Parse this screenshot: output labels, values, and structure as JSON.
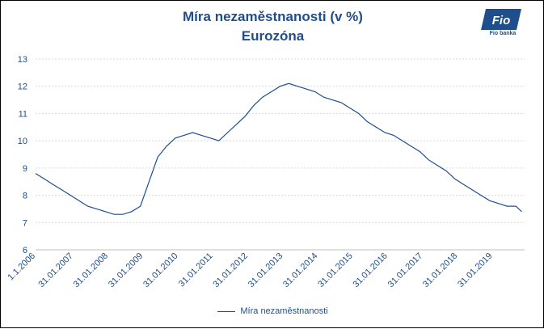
{
  "brand": {
    "logo_text": "Fio banka",
    "logo_glyph": "Fio",
    "color": "#1f4e8c"
  },
  "chart_data": {
    "type": "line",
    "title": "Míra nezaměstnanosti (v %)",
    "subtitle": "Eurozóna",
    "xlabel": "",
    "ylabel": "",
    "ylim": [
      6,
      13
    ],
    "yticks": [
      6,
      7,
      8,
      9,
      10,
      11,
      12,
      13
    ],
    "xticks": [
      "1.1.2006",
      "31.01.2007",
      "31.01.2008",
      "31.01.2009",
      "31.01.2010",
      "31.01.2011",
      "31.01.2012",
      "31.01.2013",
      "31.01.2014",
      "31.01.2015",
      "31.01.2016",
      "31.01.2017",
      "31.01.2018",
      "31.01.2019"
    ],
    "grid": true,
    "legend_position": "bottom",
    "series": [
      {
        "name": "Míra nezaměstnanosti",
        "color": "#1f4e8c",
        "x": [
          "2006-01",
          "2006-04",
          "2006-07",
          "2006-10",
          "2007-01",
          "2007-04",
          "2007-07",
          "2007-10",
          "2008-01",
          "2008-04",
          "2008-07",
          "2008-10",
          "2009-01",
          "2009-04",
          "2009-07",
          "2009-10",
          "2010-01",
          "2010-04",
          "2010-07",
          "2010-10",
          "2011-01",
          "2011-04",
          "2011-07",
          "2011-10",
          "2012-01",
          "2012-04",
          "2012-07",
          "2012-10",
          "2013-01",
          "2013-04",
          "2013-07",
          "2013-10",
          "2014-01",
          "2014-04",
          "2014-07",
          "2014-10",
          "2015-01",
          "2015-04",
          "2015-07",
          "2015-10",
          "2016-01",
          "2016-04",
          "2016-07",
          "2016-10",
          "2017-01",
          "2017-04",
          "2017-07",
          "2017-10",
          "2018-01",
          "2018-04",
          "2018-07",
          "2018-10",
          "2019-01",
          "2019-04",
          "2019-07",
          "2019-10",
          "2019-12"
        ],
        "values": [
          8.8,
          8.6,
          8.4,
          8.2,
          8.0,
          7.8,
          7.6,
          7.5,
          7.4,
          7.3,
          7.3,
          7.4,
          7.6,
          8.5,
          9.4,
          9.8,
          10.1,
          10.2,
          10.3,
          10.2,
          10.1,
          10.0,
          10.3,
          10.6,
          10.9,
          11.3,
          11.6,
          11.8,
          12.0,
          12.1,
          12.0,
          11.9,
          11.8,
          11.6,
          11.5,
          11.4,
          11.2,
          11.0,
          10.7,
          10.5,
          10.3,
          10.2,
          10.0,
          9.8,
          9.6,
          9.3,
          9.1,
          8.9,
          8.6,
          8.4,
          8.2,
          8.0,
          7.8,
          7.7,
          7.6,
          7.6,
          7.4
        ]
      }
    ]
  }
}
